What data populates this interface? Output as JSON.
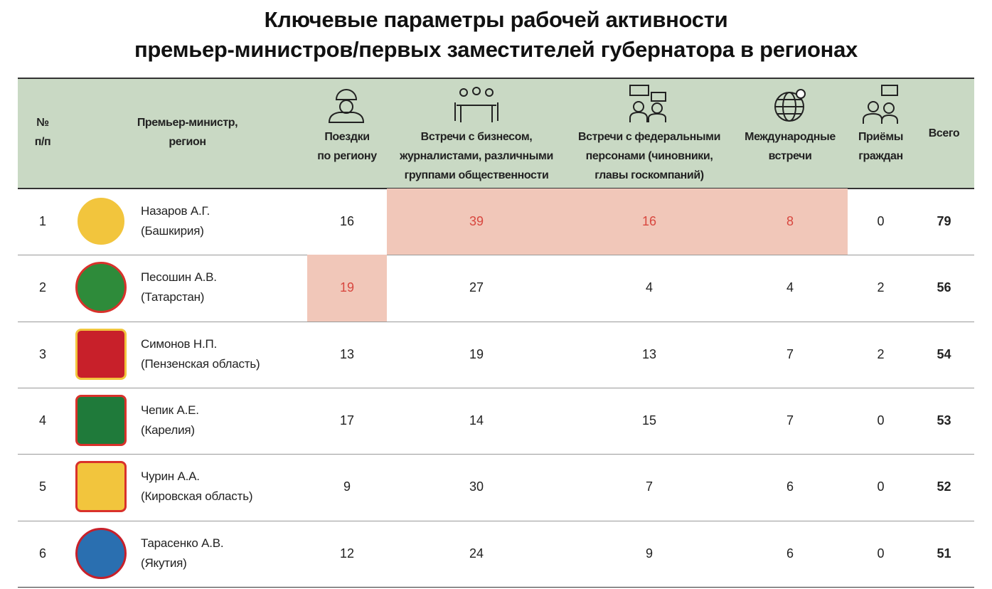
{
  "title": [
    "Ключевые параметры рабочей активности",
    "премьер-министров/первых заместителей губернатора в регионах"
  ],
  "table": {
    "headers": [
      [
        "№",
        "п/п"
      ],
      [
        "Премьер-министр,",
        "регион"
      ],
      [
        "Поездки",
        "по региону"
      ],
      [
        "Встречи с бизнесом,",
        "журналистами, различными",
        "группами общественности"
      ],
      [
        "Встречи с федеральными",
        "персонами (чиновники,",
        "главы госкомпаний)"
      ],
      [
        "Международные",
        "встречи"
      ],
      [
        "Приёмы",
        "граждан"
      ],
      [
        "Всего"
      ]
    ],
    "header_color": "#c9d9c4",
    "highlight_color": "#f1c7b9",
    "highlight_text_color": "#d8473f",
    "rows": [
      {
        "number": "1",
        "name": "Назаров А.Г.",
        "region": "(Башкирия)",
        "values": [
          16,
          39,
          16,
          8,
          0
        ],
        "total": 79,
        "highlight": [
          1,
          2,
          3
        ]
      },
      {
        "number": "2",
        "name": "Песошин А.В.",
        "region": "(Татарстан)",
        "values": [
          19,
          27,
          4,
          4,
          2
        ],
        "total": 56,
        "highlight": [
          0
        ]
      },
      {
        "number": "3",
        "name": "Симонов Н.П.",
        "region": "(Пензенская область)",
        "values": [
          13,
          19,
          13,
          7,
          2
        ],
        "total": 54,
        "highlight": []
      },
      {
        "number": "4",
        "name": "Чепик А.Е.",
        "region": "(Карелия)",
        "values": [
          17,
          14,
          15,
          7,
          0
        ],
        "total": 53,
        "highlight": []
      },
      {
        "number": "5",
        "name": "Чурин А.А.",
        "region": "(Кировская область)",
        "values": [
          9,
          30,
          7,
          6,
          0
        ],
        "total": 52,
        "highlight": []
      },
      {
        "number": "6",
        "name": "Тарасенко А.В.",
        "region": "(Якутия)",
        "values": [
          12,
          24,
          9,
          6,
          0
        ],
        "total": 51,
        "highlight": []
      }
    ]
  }
}
